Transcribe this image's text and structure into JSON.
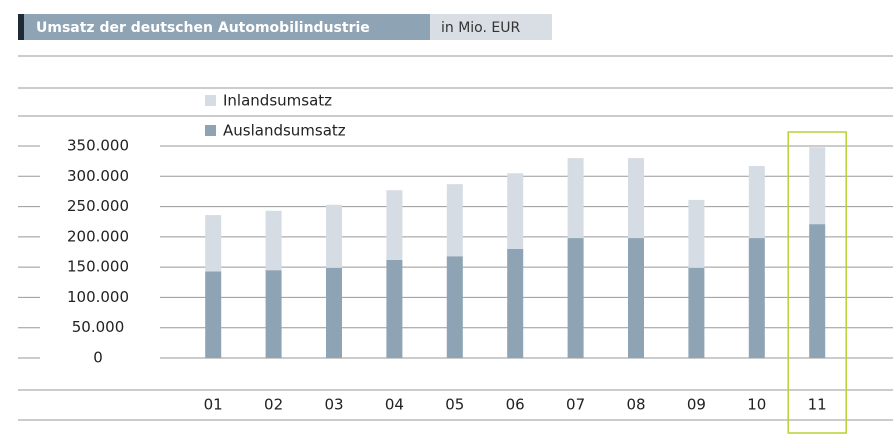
{
  "chart_data": {
    "type": "stacked_bar",
    "title": "Umsatz der deutschen Automobilindustrie",
    "subtitle": "in Mio. EUR",
    "categories": [
      "01",
      "02",
      "03",
      "04",
      "05",
      "06",
      "07",
      "08",
      "09",
      "10",
      "11"
    ],
    "series": [
      {
        "name": "Auslandsumsatz",
        "color": "#8ea3b4",
        "values": [
          143000,
          145000,
          149000,
          162000,
          168000,
          180000,
          198000,
          198000,
          149000,
          198000,
          221000
        ]
      },
      {
        "name": "Inlandsumsatz",
        "color": "#d5dce3",
        "values": [
          93000,
          98000,
          104000,
          115000,
          119000,
          125000,
          132000,
          132000,
          112000,
          119000,
          127000
        ]
      }
    ],
    "ylim": [
      0,
      350000
    ],
    "yticks": [
      0,
      {
        "value": 50000,
        "label": "50.000"
      },
      {
        "value": 100000,
        "label": "100.000"
      },
      {
        "value": 150000,
        "label": "150.000"
      },
      {
        "value": 200000,
        "label": "200.000"
      },
      {
        "value": 250000,
        "label": "250.000"
      },
      {
        "value": 300000,
        "label": "300.000"
      },
      {
        "value": 350000,
        "label": "350.000"
      }
    ],
    "grid": true,
    "highlight": "11",
    "highlight_color": "#b5d334"
  }
}
